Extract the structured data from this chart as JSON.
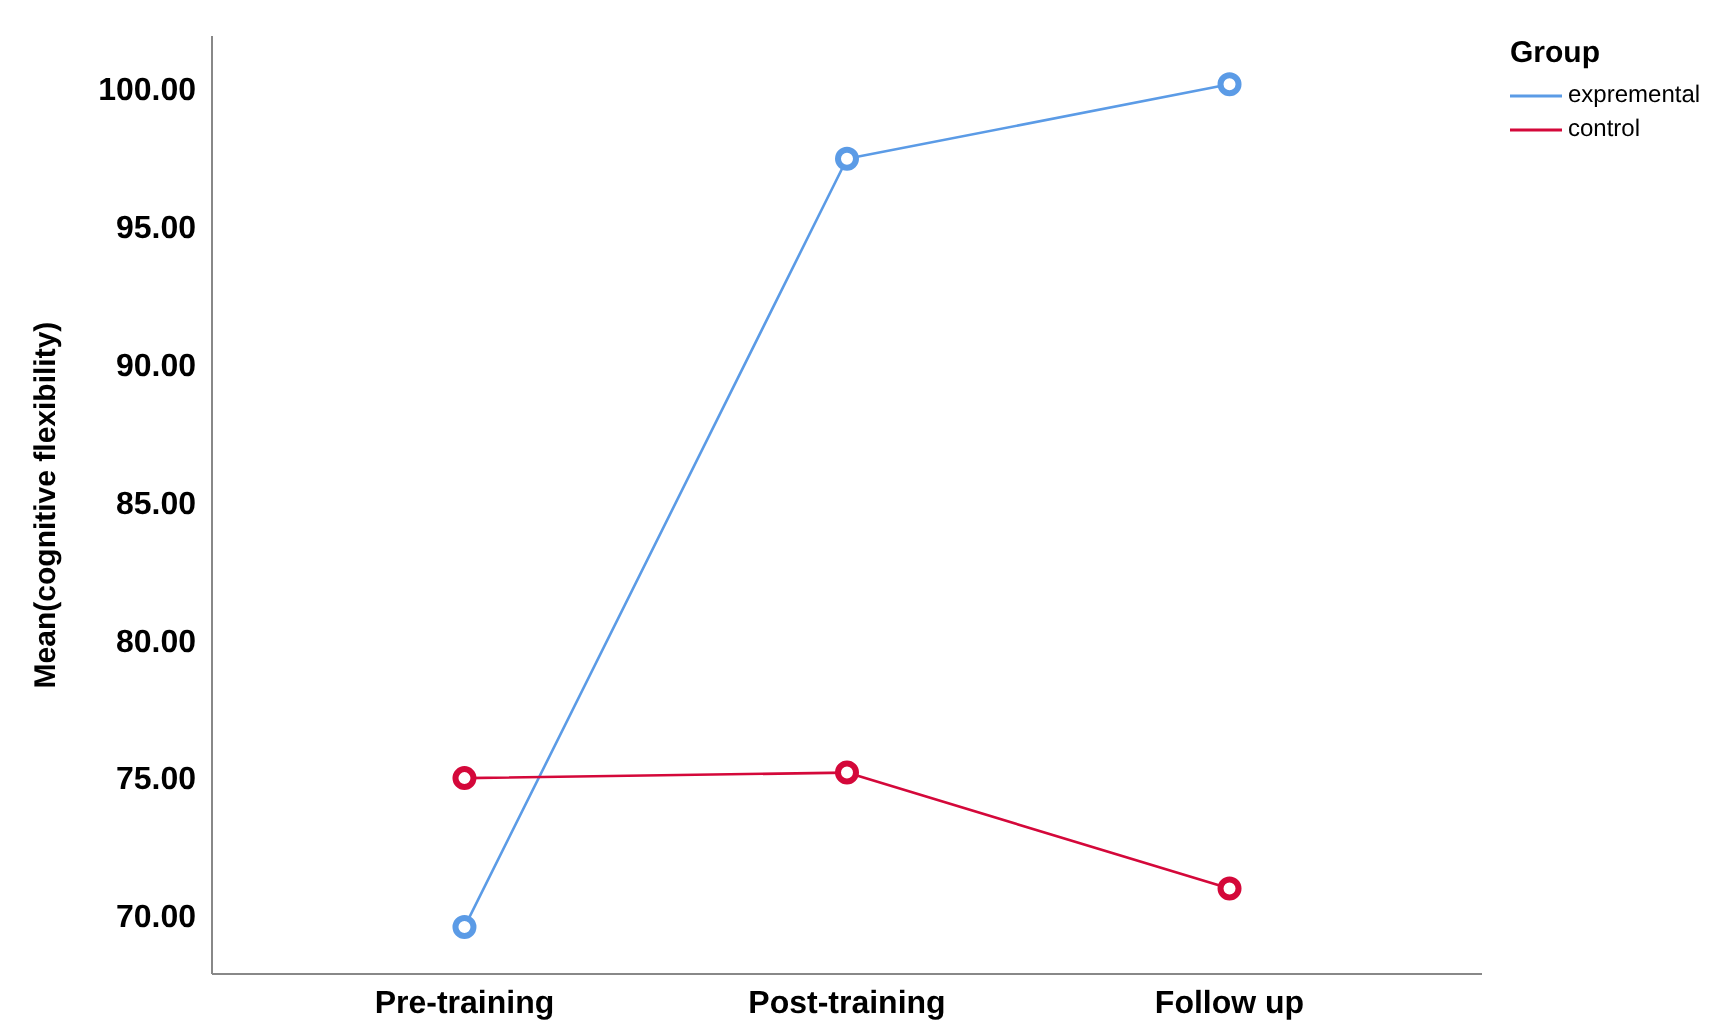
{
  "chart_data": {
    "type": "line",
    "ylabel": "Mean(cognitive flexibility)",
    "legend_title": "Group",
    "categories": [
      "Pre-training",
      "Post-training",
      "Follow up"
    ],
    "series": [
      {
        "name": "expremental",
        "color": "#5b9be6",
        "values": [
          69.6,
          97.45,
          100.15
        ]
      },
      {
        "name": "control",
        "color": "#d4083a",
        "values": [
          75.0,
          75.2,
          71.0
        ]
      }
    ],
    "ylim": [
      67.9,
      101.9
    ],
    "yticks": [
      {
        "value": 70,
        "label": "70.00"
      },
      {
        "value": 75,
        "label": "75.00"
      },
      {
        "value": 80,
        "label": "80.00"
      },
      {
        "value": 85,
        "label": "85.00"
      },
      {
        "value": 90,
        "label": "90.00"
      },
      {
        "value": 95,
        "label": "95.00"
      },
      {
        "value": 100,
        "label": "100.00"
      }
    ],
    "legend": "top right",
    "marker": "circle",
    "line_style": "solid",
    "grid": false
  }
}
